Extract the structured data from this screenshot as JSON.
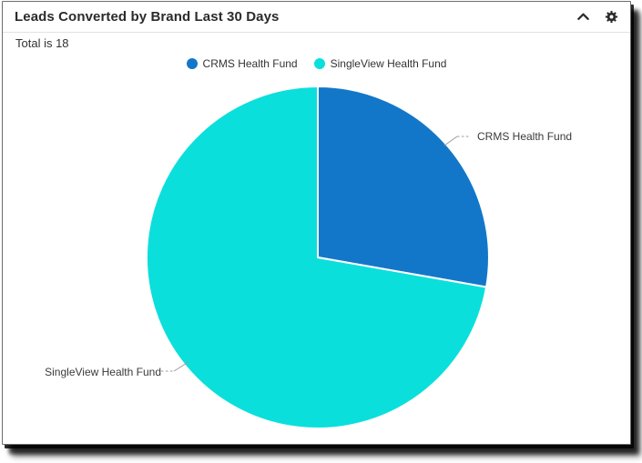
{
  "window": {
    "title": "Leads Converted by Brand Last 30 Days"
  },
  "summary": {
    "total_text": "Total is 18"
  },
  "chart_data": {
    "type": "pie",
    "title": "Leads Converted by Brand Last 30 Days",
    "total": 18,
    "start_angle_deg": 0,
    "direction": "clockwise",
    "legend_position": "top-center",
    "slices": [
      {
        "label": "CRMS Health Fund",
        "value": 5,
        "color": "#1377C9"
      },
      {
        "label": "SingleView Health Fund",
        "value": 13,
        "color": "#0BDFDC"
      }
    ]
  },
  "icons": {
    "collapse": "chevron-up-icon",
    "settings": "gear-icon"
  },
  "colors": {
    "title_text": "#2b2b2b",
    "body_text": "#333333",
    "connector": "#9b9b9b",
    "divider": "#e3e3e3",
    "slice_stroke": "#ffffff"
  }
}
